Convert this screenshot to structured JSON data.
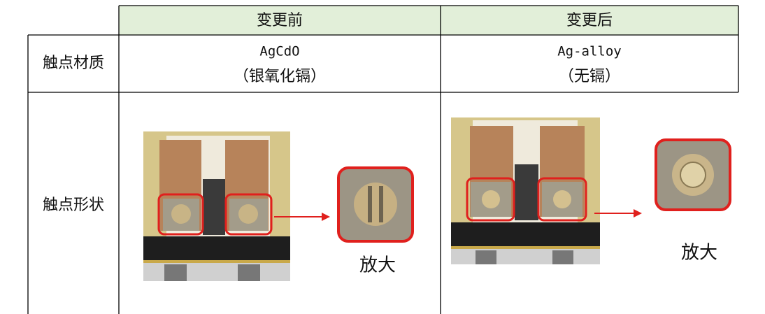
{
  "table": {
    "header": [
      "变更前",
      "变更后"
    ],
    "rows": [
      {
        "label": "触点材质",
        "before": [
          "AgCdO",
          "（银氧化镉）"
        ],
        "after": [
          "Ag-alloy",
          "（无镉）"
        ]
      },
      {
        "label": "触点形状",
        "before_caption": "放大",
        "after_caption": "放大"
      }
    ]
  }
}
